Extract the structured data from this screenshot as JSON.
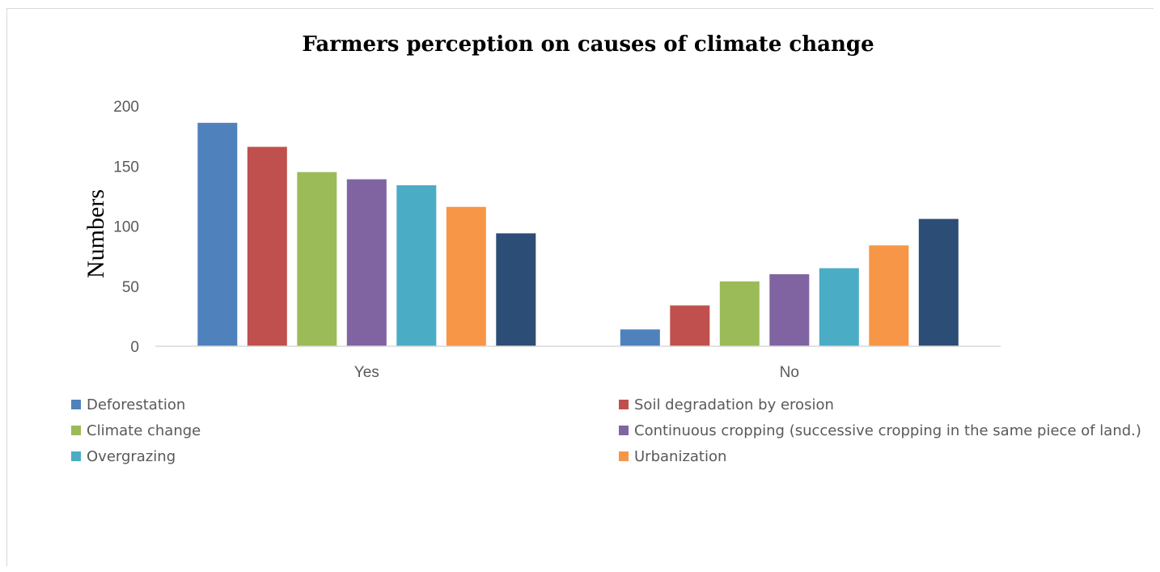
{
  "chart_data": {
    "type": "bar",
    "title": "Farmers perception on causes of climate change",
    "xlabel": "",
    "ylabel": "Numbers",
    "categories": [
      "Yes",
      "No"
    ],
    "ylim": [
      0,
      200
    ],
    "yticks": [
      0,
      50,
      100,
      150,
      200
    ],
    "grid": false,
    "legend_position": "bottom",
    "series": [
      {
        "name": "Deforestation",
        "color": "#4f81bd",
        "values": [
          186,
          14
        ]
      },
      {
        "name": "Soil degradation by erosion",
        "color": "#c0504d",
        "values": [
          166,
          34
        ]
      },
      {
        "name": "Climate change",
        "color": "#9bbb59",
        "values": [
          145,
          54
        ]
      },
      {
        "name": "Continuous cropping (successive cropping in the same piece of land.)",
        "color": "#8064a2",
        "values": [
          139,
          60
        ]
      },
      {
        "name": "Overgrazing",
        "color": "#4bacc6",
        "values": [
          134,
          65
        ]
      },
      {
        "name": "Urbanization",
        "color": "#f79646",
        "values": [
          116,
          84
        ]
      },
      {
        "name": "",
        "color": "#2c4d75",
        "values": [
          94,
          106
        ]
      }
    ]
  }
}
